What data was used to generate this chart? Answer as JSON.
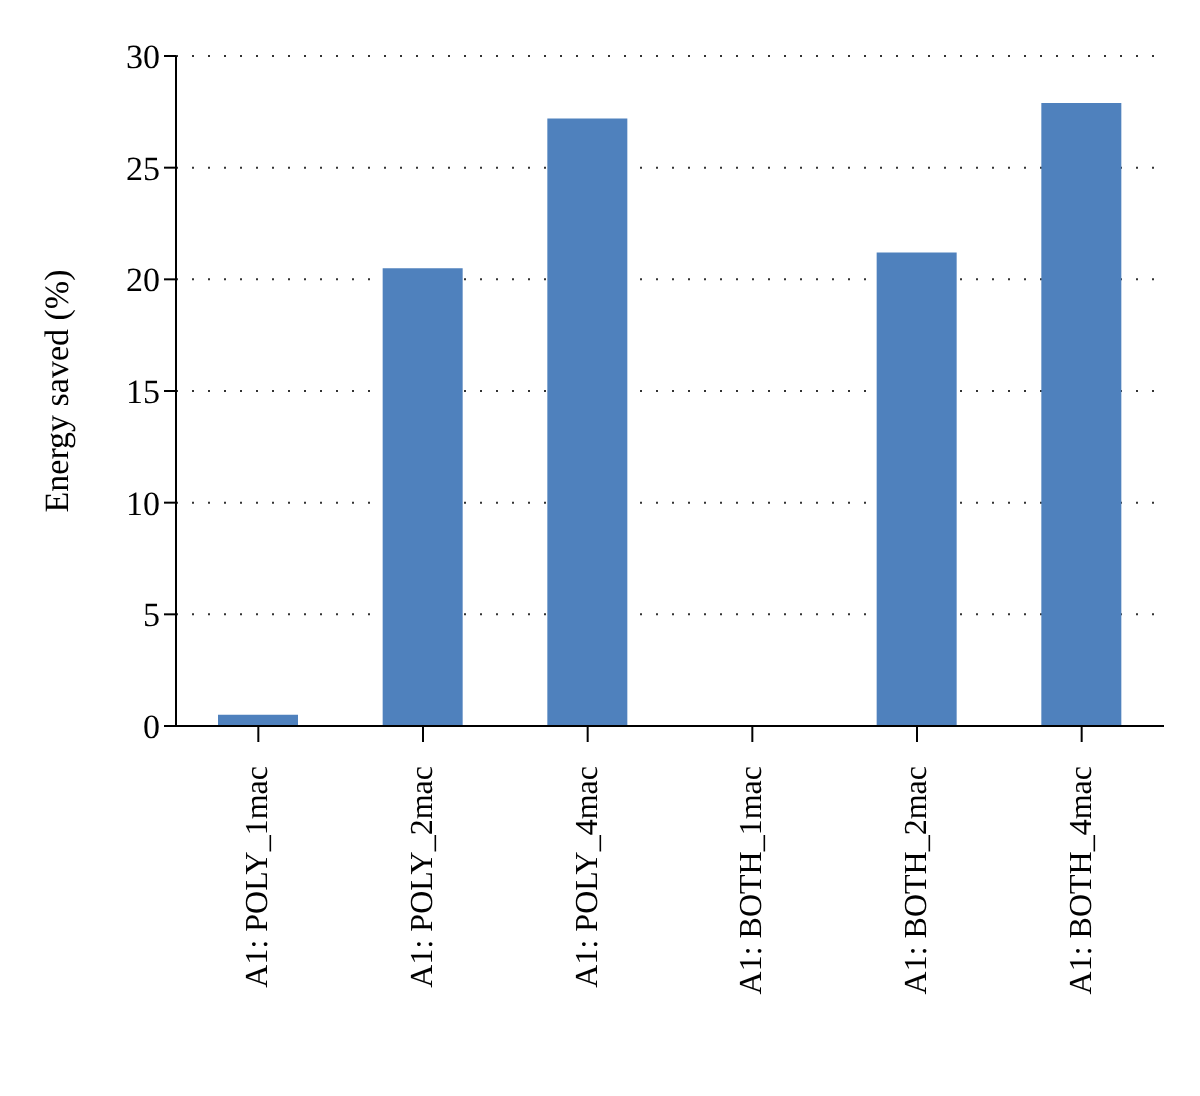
{
  "chart_data": {
    "type": "bar",
    "ylabel": "Energy saved (%)",
    "categories": [
      "A1: POLY_1mac",
      "A1: POLY_2mac",
      "A1: POLY_4mac",
      "A1: BOTH_1mac",
      "A1: BOTH_2mac",
      "A1: BOTH_4mac"
    ],
    "values": [
      0.5,
      20.5,
      27.2,
      0,
      21.2,
      27.9
    ],
    "color": "#4f81bd",
    "ylim": [
      0,
      30
    ],
    "yticks": [
      0,
      5,
      10,
      15,
      20,
      25,
      30
    ],
    "grid": "y",
    "legend": false
  }
}
